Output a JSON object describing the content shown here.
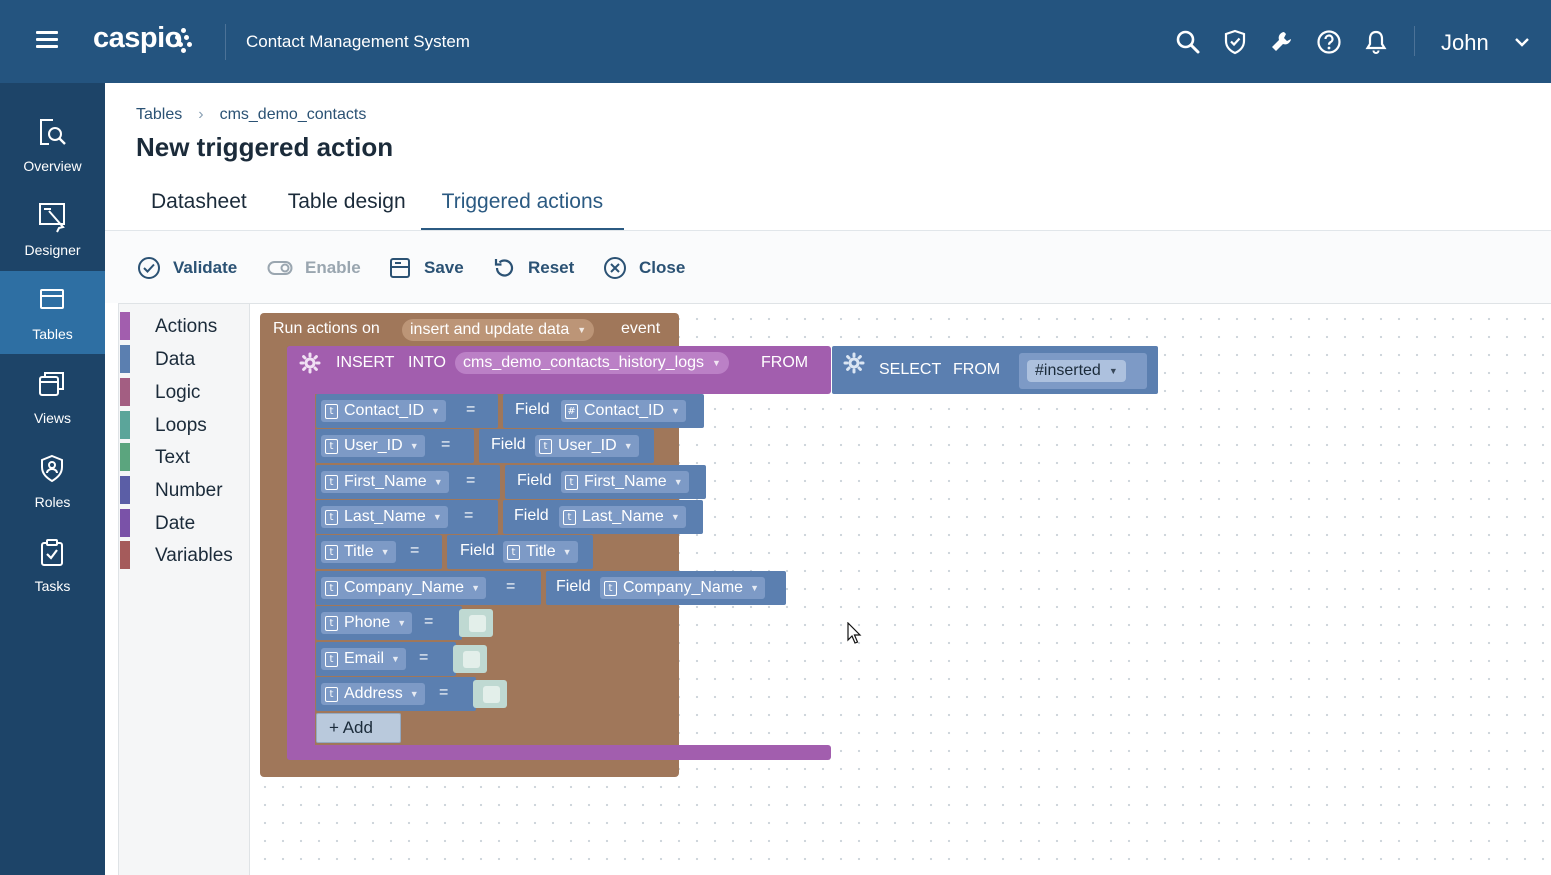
{
  "app": {
    "logo_text": "caspio",
    "title": "Contact Management System",
    "user": "John",
    "top_icons": [
      "search-icon",
      "shield-icon",
      "wrench-icon",
      "help-icon",
      "bell-icon"
    ]
  },
  "rail": {
    "items": [
      {
        "label": "Overview",
        "icon": "overview-icon"
      },
      {
        "label": "Designer",
        "icon": "designer-icon"
      },
      {
        "label": "Tables",
        "icon": "tables-icon",
        "active": true
      },
      {
        "label": "Views",
        "icon": "views-icon"
      },
      {
        "label": "Roles",
        "icon": "roles-icon"
      },
      {
        "label": "Tasks",
        "icon": "tasks-icon"
      }
    ]
  },
  "breadcrumb": {
    "root": "Tables",
    "current": "cms_demo_contacts"
  },
  "page_title": "New triggered action",
  "tabs": [
    {
      "label": "Datasheet"
    },
    {
      "label": "Table design"
    },
    {
      "label": "Triggered actions",
      "active": true
    }
  ],
  "toolbar": {
    "validate": "Validate",
    "enable": "Enable",
    "save": "Save",
    "reset": "Reset",
    "close": "Close"
  },
  "categories": [
    {
      "label": "Actions",
      "color": "#a25eae"
    },
    {
      "label": "Data",
      "color": "#5b7fb0"
    },
    {
      "label": "Logic",
      "color": "#a35e82"
    },
    {
      "label": "Loops",
      "color": "#5ba59a"
    },
    {
      "label": "Text",
      "color": "#5ba57e"
    },
    {
      "label": "Number",
      "color": "#5b5ea6"
    },
    {
      "label": "Date",
      "color": "#7a52a8"
    },
    {
      "label": "Variables",
      "color": "#a55b5b"
    }
  ],
  "event": {
    "prefix": "Run actions on",
    "value": "insert and update data",
    "suffix": "event"
  },
  "insert": {
    "kw_insert": "INSERT",
    "kw_into": "INTO",
    "table": "cms_demo_contacts_history_logs",
    "kw_from": "FROM",
    "kw_select": "SELECT",
    "kw_select_from": "FROM",
    "source": "#inserted"
  },
  "mappings": [
    {
      "target": "Contact_ID",
      "eq": "=",
      "field_label": "Field",
      "source": "Contact_ID"
    },
    {
      "target": "User_ID",
      "eq": "=",
      "field_label": "Field",
      "source": "User_ID"
    },
    {
      "target": "First_Name",
      "eq": "=",
      "field_label": "Field",
      "source": "First_Name"
    },
    {
      "target": "Last_Name",
      "eq": "=",
      "field_label": "Field",
      "source": "Last_Name"
    },
    {
      "target": "Title",
      "eq": "=",
      "field_label": "Field",
      "source": "Title"
    },
    {
      "target": "Company_Name",
      "eq": "=",
      "field_label": "Field",
      "source": "Company_Name"
    },
    {
      "target": "Phone",
      "eq": "="
    },
    {
      "target": "Email",
      "eq": "="
    },
    {
      "target": "Address",
      "eq": "="
    }
  ],
  "add_label": "+ Add"
}
